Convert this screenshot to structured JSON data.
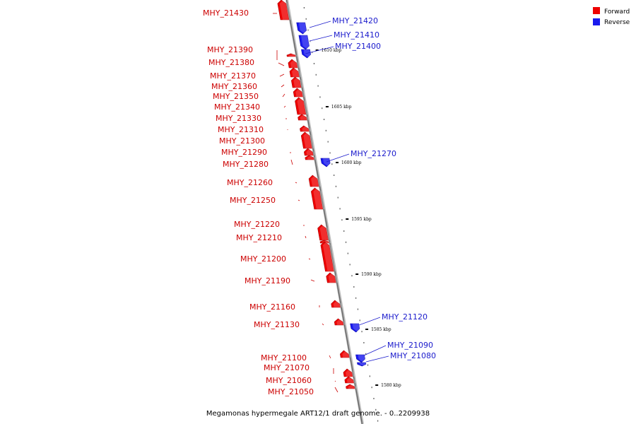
{
  "colors": {
    "forward": "#ee0000",
    "reverse": "#1a1aee",
    "forward_label": "#cc0000",
    "reverse_label": "#1a1acc",
    "axis": "#888888"
  },
  "legend": {
    "forward": "Forward",
    "reverse": "Reverse"
  },
  "caption": "Megamonas hypermegale ART12/1 draft genome. - 0..2209938",
  "ticks": [
    "1610 kbp",
    "1605 kbp",
    "1600 kbp",
    "1595 kbp",
    "1590 kbp",
    "1585 kbp",
    "1580 kbp"
  ],
  "genes": [
    {
      "id": "MHY_21430",
      "strand": "forward"
    },
    {
      "id": "MHY_21420",
      "strand": "reverse"
    },
    {
      "id": "MHY_21410",
      "strand": "reverse"
    },
    {
      "id": "MHY_21400",
      "strand": "reverse"
    },
    {
      "id": "MHY_21390",
      "strand": "forward"
    },
    {
      "id": "MHY_21380",
      "strand": "forward"
    },
    {
      "id": "MHY_21370",
      "strand": "forward"
    },
    {
      "id": "MHY_21360",
      "strand": "forward"
    },
    {
      "id": "MHY_21350",
      "strand": "forward"
    },
    {
      "id": "MHY_21340",
      "strand": "forward"
    },
    {
      "id": "MHY_21330",
      "strand": "forward"
    },
    {
      "id": "MHY_21310",
      "strand": "forward"
    },
    {
      "id": "MHY_21300",
      "strand": "forward"
    },
    {
      "id": "MHY_21290",
      "strand": "forward"
    },
    {
      "id": "MHY_21280",
      "strand": "forward"
    },
    {
      "id": "MHY_21270",
      "strand": "reverse"
    },
    {
      "id": "MHY_21260",
      "strand": "forward"
    },
    {
      "id": "MHY_21250",
      "strand": "forward"
    },
    {
      "id": "MHY_21220",
      "strand": "forward"
    },
    {
      "id": "MHY_21210",
      "strand": "forward"
    },
    {
      "id": "MHY_21200",
      "strand": "forward"
    },
    {
      "id": "MHY_21190",
      "strand": "forward"
    },
    {
      "id": "MHY_21160",
      "strand": "forward"
    },
    {
      "id": "MHY_21130",
      "strand": "forward"
    },
    {
      "id": "MHY_21120",
      "strand": "reverse"
    },
    {
      "id": "MHY_21100",
      "strand": "forward"
    },
    {
      "id": "MHY_21090",
      "strand": "reverse"
    },
    {
      "id": "MHY_21080",
      "strand": "reverse"
    },
    {
      "id": "MHY_21070",
      "strand": "forward"
    },
    {
      "id": "MHY_21060",
      "strand": "forward"
    },
    {
      "id": "MHY_21050",
      "strand": "forward"
    }
  ]
}
